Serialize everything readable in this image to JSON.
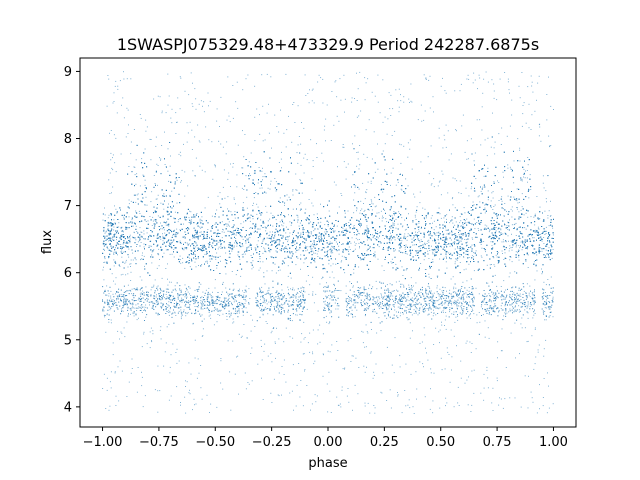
{
  "chart_data": {
    "type": "scatter",
    "title": "1SWASPJ075329.48+473329.9 Period 242287.6875s",
    "xlabel": "phase",
    "ylabel": "flux",
    "xlim": [
      -1.1,
      1.1
    ],
    "ylim": [
      3.7,
      9.2
    ],
    "xticks": [
      -1.0,
      -0.75,
      -0.5,
      -0.25,
      0.0,
      0.25,
      0.5,
      0.75,
      1.0
    ],
    "xtick_labels": [
      "−1.00",
      "−0.75",
      "−0.50",
      "−0.25",
      "0.00",
      "0.25",
      "0.50",
      "0.75",
      "1.00"
    ],
    "yticks": [
      4,
      5,
      6,
      7,
      8,
      9
    ],
    "ytick_labels": [
      "4",
      "5",
      "6",
      "7",
      "8",
      "9"
    ],
    "grid": false,
    "point_color": "#1f77b4",
    "series": [
      {
        "x_range": [
          -1.0,
          1.0
        ],
        "main_band": {
          "center": 6.5,
          "spread": 0.35,
          "upper_excursions_to": 7.6
        },
        "lower_band": {
          "center": 5.58,
          "spread": 0.12
        },
        "lower_band_gaps": [
          [
            -0.35,
            -0.32
          ],
          [
            -0.1,
            -0.02
          ],
          [
            0.05,
            0.08
          ],
          [
            0.65,
            0.68
          ],
          [
            0.92,
            0.95
          ]
        ],
        "scatter_extent": [
          3.9,
          9.0
        ]
      }
    ]
  }
}
